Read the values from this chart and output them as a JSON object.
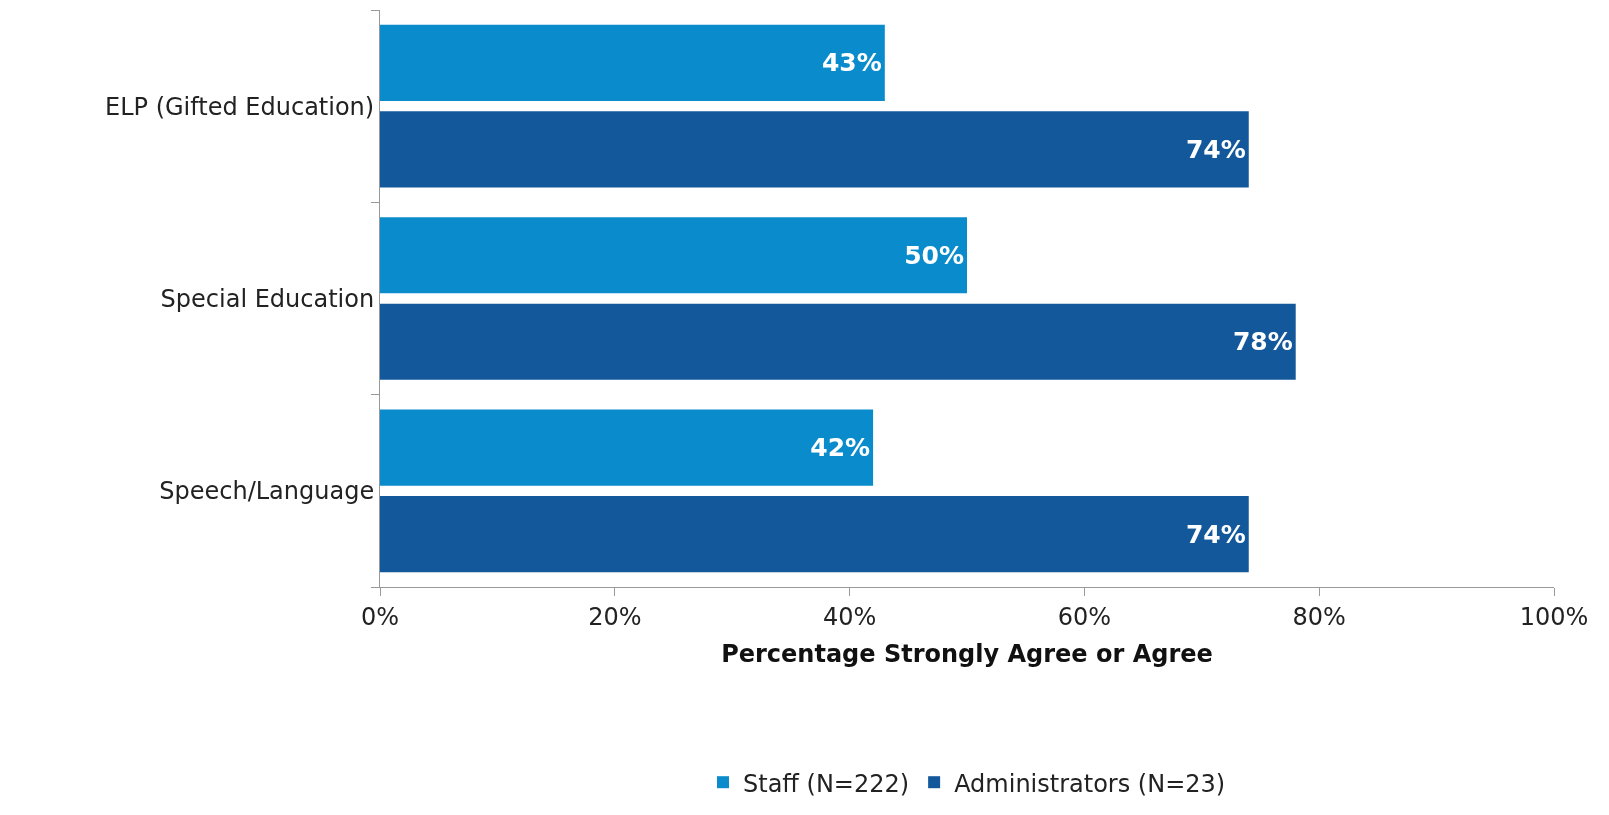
{
  "chart_data": {
    "type": "bar",
    "orientation": "horizontal",
    "xlabel": "Percentage Strongly Agree or Agree",
    "categories": [
      "ELP (Gifted Education)",
      "Special Education",
      "Speech/Language"
    ],
    "series": [
      {
        "name": "Staff (N=222)",
        "color": "#0a8bcb",
        "values": [
          43,
          50,
          42
        ],
        "value_labels": [
          "43%",
          "50%",
          "42%"
        ]
      },
      {
        "name": "Administrators (N=23)",
        "color": "#14589c",
        "values": [
          74,
          78,
          74
        ],
        "value_labels": [
          "74%",
          "78%",
          "74%"
        ]
      }
    ],
    "xlim": [
      0,
      100
    ],
    "xticks": [
      {
        "value": 0,
        "label": "0%"
      },
      {
        "value": 20,
        "label": "20%"
      },
      {
        "value": 40,
        "label": "40%"
      },
      {
        "value": 60,
        "label": "60%"
      },
      {
        "value": 80,
        "label": "80%"
      },
      {
        "value": 100,
        "label": "100%"
      }
    ],
    "legend": "bottom"
  }
}
